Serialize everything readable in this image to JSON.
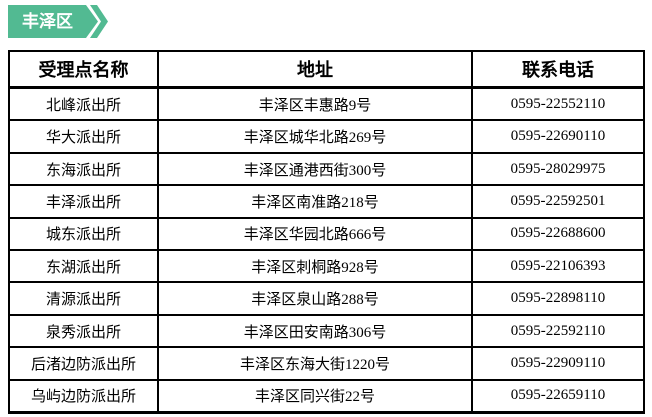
{
  "region_tag": {
    "label": "丰泽区",
    "color": "#52BA92"
  },
  "table": {
    "columns": [
      {
        "key": "name",
        "label": "受理点名称"
      },
      {
        "key": "address",
        "label": "地址"
      },
      {
        "key": "phone",
        "label": "联系电话"
      }
    ],
    "rows": [
      {
        "name": "北峰派出所",
        "address": "丰泽区丰惠路9号",
        "phone": "0595-22552110"
      },
      {
        "name": "华大派出所",
        "address": "丰泽区城华北路269号",
        "phone": "0595-22690110"
      },
      {
        "name": "东海派出所",
        "address": "丰泽区通港西街300号",
        "phone": "0595-28029975"
      },
      {
        "name": "丰泽派出所",
        "address": "丰泽区南准路218号",
        "phone": "0595-22592501"
      },
      {
        "name": "城东派出所",
        "address": "丰泽区华园北路666号",
        "phone": "0595-22688600"
      },
      {
        "name": "东湖派出所",
        "address": "丰泽区刺桐路928号",
        "phone": "0595-22106393"
      },
      {
        "name": "清源派出所",
        "address": "丰泽区泉山路288号",
        "phone": "0595-22898110"
      },
      {
        "name": "泉秀派出所",
        "address": "丰泽区田安南路306号",
        "phone": "0595-22592110"
      },
      {
        "name": "后渚边防派出所",
        "address": "丰泽区东海大街1220号",
        "phone": "0595-22909110"
      },
      {
        "name": "乌屿边防派出所",
        "address": "丰泽区同兴街22号",
        "phone": "0595-22659110"
      }
    ]
  }
}
